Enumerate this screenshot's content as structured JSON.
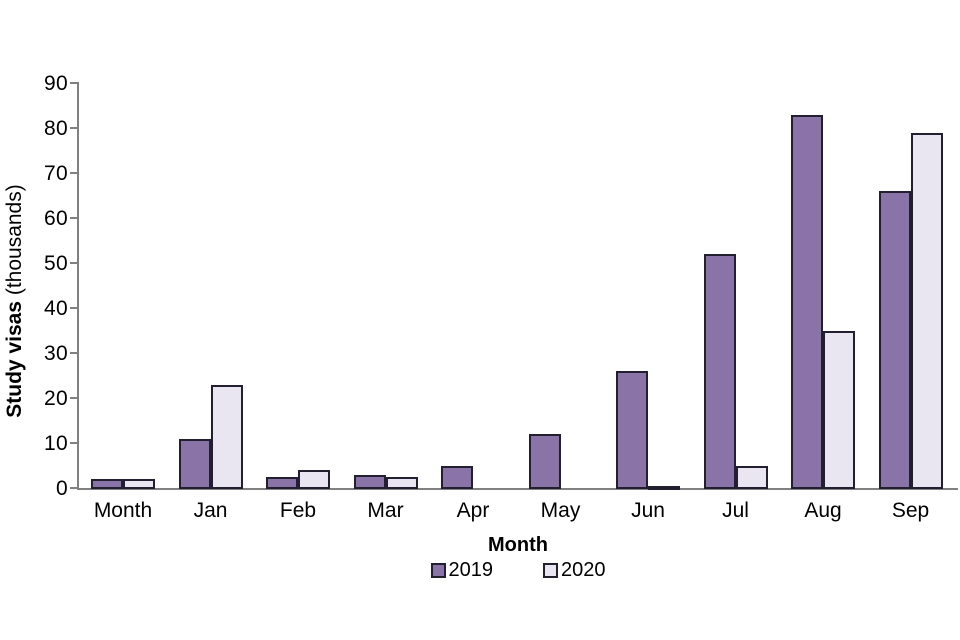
{
  "chart_data": {
    "type": "bar",
    "title": "",
    "categories": [
      "Month",
      "Jan",
      "Feb",
      "Mar",
      "Apr",
      "May",
      "Jun",
      "Jul",
      "Aug",
      "Sep"
    ],
    "series": [
      {
        "name": "2019",
        "color": "#8973a7",
        "values": [
          2,
          11,
          2.5,
          3,
          5,
          12,
          26,
          52,
          83,
          66
        ]
      },
      {
        "name": "2020",
        "color": "#e9e6f2",
        "values": [
          2,
          23,
          4,
          2.5,
          0,
          0,
          0.5,
          5,
          35,
          79
        ]
      }
    ],
    "xlabel": "Month",
    "ylabel_bold": "Study visas",
    "ylabel_suffix": " (thousands)",
    "ylim": [
      0,
      90
    ],
    "ytick_step": 10,
    "yticks": [
      0,
      10,
      20,
      30,
      40,
      50,
      60,
      70,
      80,
      90
    ],
    "grid": false,
    "legend_position": "bottom-center",
    "colors": {
      "axis": "#808080",
      "bar_border": "#222030",
      "text": "#000000",
      "background": "#ffffff"
    }
  }
}
